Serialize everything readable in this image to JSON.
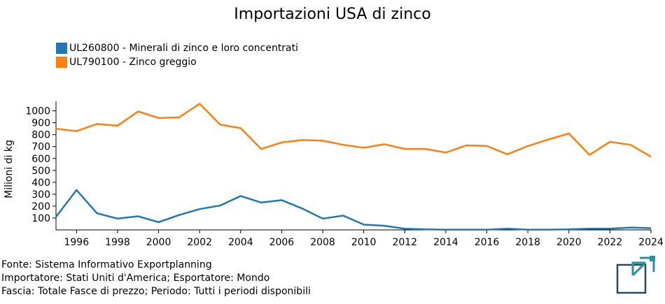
{
  "footer": {
    "source": "Fonte: Sistema Informativo Exportplanning",
    "importer": "Importatore: Stati Uniti d'America; Esportatore: Mondo",
    "band": "Fascia: Totale Fasce di prezzo; Periodo: Tutti i periodi disponibili"
  },
  "chart_data": {
    "type": "line",
    "title": "Importazioni USA di zinco",
    "xlabel": "",
    "ylabel": "Milioni di kg",
    "x": [
      1995,
      1996,
      1997,
      1998,
      1999,
      2000,
      2001,
      2002,
      2003,
      2004,
      2005,
      2006,
      2007,
      2008,
      2009,
      2010,
      2011,
      2012,
      2013,
      2014,
      2015,
      2016,
      2017,
      2018,
      2019,
      2020,
      2021,
      2022,
      2023,
      2024
    ],
    "xlim": [
      1995,
      2024
    ],
    "ylim": [
      0,
      1080
    ],
    "x_ticks": [
      1996,
      1998,
      2000,
      2002,
      2004,
      2006,
      2008,
      2010,
      2012,
      2014,
      2016,
      2018,
      2020,
      2022,
      2024
    ],
    "y_ticks": [
      100,
      200,
      300,
      400,
      500,
      600,
      700,
      800,
      900,
      1000
    ],
    "grid": false,
    "legend_position": "top-left",
    "series": [
      {
        "name": "UL260800 - Minerali di zinco e loro concentrati",
        "color": "#1f77b4",
        "values": [
          110,
          335,
          140,
          95,
          115,
          65,
          125,
          175,
          205,
          285,
          230,
          250,
          180,
          95,
          120,
          45,
          35,
          10,
          5,
          2,
          2,
          2,
          10,
          2,
          2,
          5,
          10,
          10,
          20,
          15
        ]
      },
      {
        "name": "UL790100 - Zinco greggio",
        "color": "#ff7f0e",
        "values": [
          850,
          830,
          890,
          875,
          995,
          940,
          945,
          1060,
          885,
          855,
          680,
          735,
          755,
          750,
          715,
          690,
          720,
          680,
          680,
          650,
          710,
          705,
          635,
          705,
          760,
          810,
          630,
          740,
          715,
          615
        ]
      }
    ]
  }
}
